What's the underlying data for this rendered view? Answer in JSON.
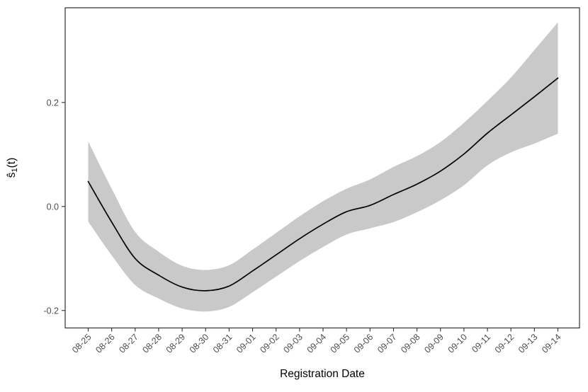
{
  "chart_data": {
    "type": "line",
    "title": "",
    "xlabel": "Registration Date",
    "ylabel": {
      "display": "ŝ",
      "subscript": "1",
      "suffix": "(t)",
      "semantic": "s-hat-1-of-t"
    },
    "grid": false,
    "legend": false,
    "x_tick_labels": [
      "08-25",
      "08-26",
      "08-27",
      "08-28",
      "08-29",
      "08-30",
      "08-31",
      "09-01",
      "09-02",
      "09-03",
      "09-04",
      "09-05",
      "09-06",
      "09-07",
      "09-08",
      "09-09",
      "09-10",
      "09-11",
      "09-12",
      "09-13",
      "09-14"
    ],
    "y_ticks": [
      {
        "value": -0.2,
        "label": "-0.2"
      },
      {
        "value": 0.0,
        "label": "0.0"
      },
      {
        "value": 0.2,
        "label": "0.2"
      }
    ],
    "ylim": [
      -0.233,
      0.382
    ],
    "series": [
      {
        "name": "smooth_estimate",
        "values": [
          0.048,
          -0.03,
          -0.1,
          -0.132,
          -0.155,
          -0.162,
          -0.153,
          -0.124,
          -0.093,
          -0.062,
          -0.034,
          -0.01,
          0.002,
          0.023,
          0.043,
          0.068,
          0.101,
          0.141,
          0.176,
          0.211,
          0.247
        ]
      },
      {
        "name": "ci_lower",
        "values": [
          -0.029,
          -0.094,
          -0.151,
          -0.177,
          -0.196,
          -0.202,
          -0.193,
          -0.165,
          -0.135,
          -0.105,
          -0.078,
          -0.054,
          -0.042,
          -0.03,
          -0.011,
          0.012,
          0.041,
          0.079,
          0.104,
          0.121,
          0.14
        ]
      },
      {
        "name": "ci_upper",
        "values": [
          0.125,
          0.034,
          -0.049,
          -0.087,
          -0.114,
          -0.122,
          -0.113,
          -0.083,
          -0.051,
          -0.019,
          0.01,
          0.034,
          0.052,
          0.076,
          0.097,
          0.124,
          0.161,
          0.203,
          0.248,
          0.301,
          0.354
        ]
      }
    ],
    "colors": {
      "line": "#000000",
      "band": "#c9c9c9",
      "axis_text": "#4d4d4d",
      "axis_title": "#000000",
      "panel_border": "#2f2f2f",
      "background": "#ffffff"
    }
  }
}
